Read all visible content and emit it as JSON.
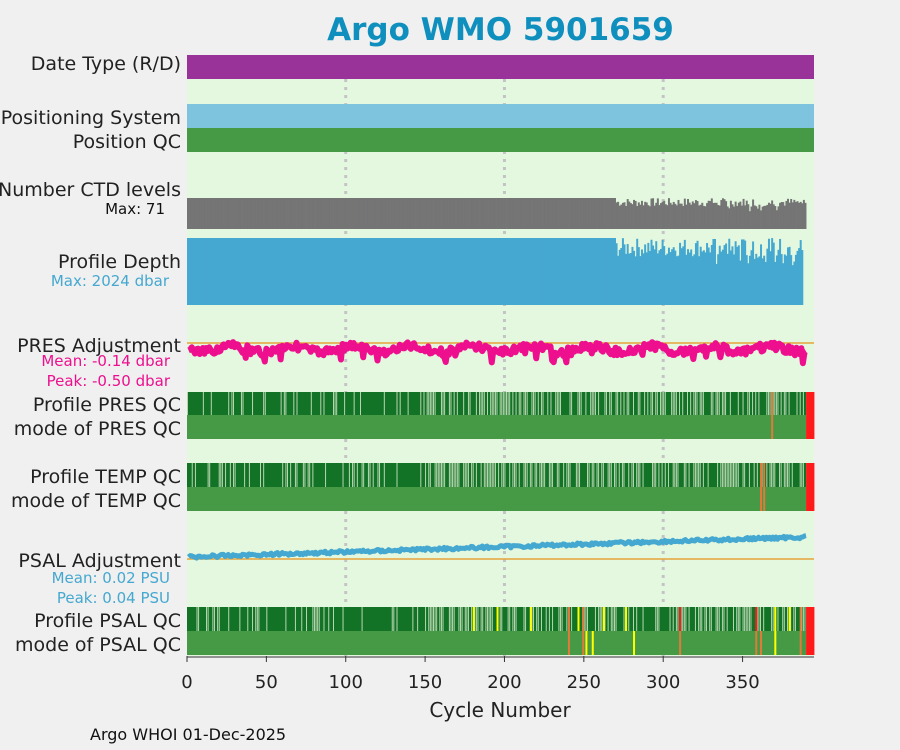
{
  "colors": {
    "title": "#0f8fbd",
    "background": "#e4f8df",
    "grid": "#c4c4c4",
    "date_type": "#993399",
    "positioning_system": "#7ec4df",
    "qc_good": "#469a46",
    "qc_dark": "#127327",
    "qc_light": "#bfdab5",
    "qc_yellow": "#ffff00",
    "qc_orange": "#e07a3a",
    "qc_red": "#ff1a1a",
    "ctd_levels": "#757575",
    "profile_depth": "#45a8d0",
    "pres_adjustment": "#ee0f8e",
    "psal_adjustment": "#45a8d0",
    "zero_line": "#e6a23c"
  },
  "chart_data": {
    "type": "bar",
    "title": "Argo WMO 5901659",
    "xlabel": "Cycle Number",
    "xlim": [
      0,
      395
    ],
    "xticks": [
      0,
      50,
      100,
      150,
      200,
      250,
      300,
      350
    ],
    "grid_x": [
      100,
      200,
      300
    ],
    "n_cycles": 390,
    "rows": [
      {
        "label": "Date Type (R/D)",
        "kind": "solid",
        "color": "date_type"
      },
      {
        "label": "Positioning System",
        "kind": "solid",
        "color": "positioning_system"
      },
      {
        "label": "Position QC",
        "kind": "solid",
        "color": "qc_good"
      },
      {
        "label": "Number CTD levels",
        "kind": "bars",
        "color": "ctd_levels",
        "max": 71,
        "annotation": "Max: 71"
      },
      {
        "label": "Profile Depth",
        "kind": "bars",
        "color": "profile_depth",
        "max": 2024,
        "annotation": "Max: 2024 dbar"
      },
      {
        "label": "PRES Adjustment",
        "kind": "line",
        "color": "pres_adjustment",
        "mean": -0.14,
        "peak": -0.5,
        "units": "dbar",
        "annotations": [
          "Mean: -0.14 dbar",
          "Peak: -0.50 dbar"
        ]
      },
      {
        "label": "Profile PRES QC",
        "kind": "qc",
        "base": "qc_dark",
        "flags": [
          [
            368,
            "qc_orange"
          ],
          [
            390,
            "qc_red"
          ],
          [
            391,
            "qc_red"
          ],
          [
            392,
            "qc_red"
          ],
          [
            393,
            "qc_red"
          ],
          [
            394,
            "qc_red"
          ]
        ]
      },
      {
        "label": "mode of PRES QC",
        "kind": "qc",
        "base": "qc_good",
        "flags": [
          [
            368,
            "qc_orange"
          ],
          [
            390,
            "qc_red"
          ],
          [
            391,
            "qc_red"
          ],
          [
            392,
            "qc_red"
          ],
          [
            393,
            "qc_red"
          ],
          [
            394,
            "qc_red"
          ]
        ]
      },
      {
        "label": "Profile TEMP QC",
        "kind": "qc",
        "base": "qc_dark",
        "flags": [
          [
            361,
            "qc_orange"
          ],
          [
            363,
            "qc_orange"
          ],
          [
            390,
            "qc_red"
          ],
          [
            391,
            "qc_red"
          ],
          [
            392,
            "qc_red"
          ],
          [
            393,
            "qc_red"
          ],
          [
            394,
            "qc_red"
          ]
        ]
      },
      {
        "label": "mode of TEMP QC",
        "kind": "qc",
        "base": "qc_good",
        "flags": [
          [
            361,
            "qc_orange"
          ],
          [
            363,
            "qc_orange"
          ],
          [
            390,
            "qc_red"
          ],
          [
            391,
            "qc_red"
          ],
          [
            392,
            "qc_red"
          ],
          [
            393,
            "qc_red"
          ],
          [
            394,
            "qc_red"
          ]
        ]
      },
      {
        "label": "PSAL Adjustment",
        "kind": "line",
        "color": "psal_adjustment",
        "mean": 0.02,
        "peak": 0.04,
        "units": "PSU",
        "annotations": [
          "Mean: 0.02 PSU",
          "Peak: 0.04 PSU"
        ]
      },
      {
        "label": "Profile PSAL QC",
        "kind": "qc",
        "base": "qc_dark",
        "flags": [
          [
            180,
            "qc_yellow"
          ],
          [
            195,
            "qc_yellow"
          ],
          [
            216,
            "qc_yellow"
          ],
          [
            240,
            "qc_orange"
          ],
          [
            246,
            "qc_yellow"
          ],
          [
            249,
            "qc_orange"
          ],
          [
            262,
            "qc_yellow"
          ],
          [
            276,
            "qc_yellow"
          ],
          [
            310,
            "qc_red"
          ],
          [
            358,
            "qc_red"
          ],
          [
            370,
            "qc_yellow"
          ],
          [
            379,
            "qc_yellow"
          ],
          [
            386,
            "qc_orange"
          ],
          [
            390,
            "qc_red"
          ],
          [
            391,
            "qc_red"
          ],
          [
            392,
            "qc_red"
          ],
          [
            393,
            "qc_red"
          ],
          [
            394,
            "qc_red"
          ]
        ]
      },
      {
        "label": "mode of PSAL QC",
        "kind": "qc",
        "base": "qc_good",
        "flags": [
          [
            240,
            "qc_orange"
          ],
          [
            249,
            "qc_orange"
          ],
          [
            251,
            "qc_yellow"
          ],
          [
            255,
            "qc_yellow"
          ],
          [
            281,
            "qc_yellow"
          ],
          [
            310,
            "qc_orange"
          ],
          [
            358,
            "qc_orange"
          ],
          [
            361,
            "qc_orange"
          ],
          [
            370,
            "qc_yellow"
          ],
          [
            386,
            "qc_orange"
          ],
          [
            390,
            "qc_red"
          ],
          [
            391,
            "qc_red"
          ],
          [
            392,
            "qc_red"
          ],
          [
            393,
            "qc_red"
          ],
          [
            394,
            "qc_red"
          ]
        ]
      }
    ]
  },
  "footer": "Argo WHOI 01-Dec-2025"
}
